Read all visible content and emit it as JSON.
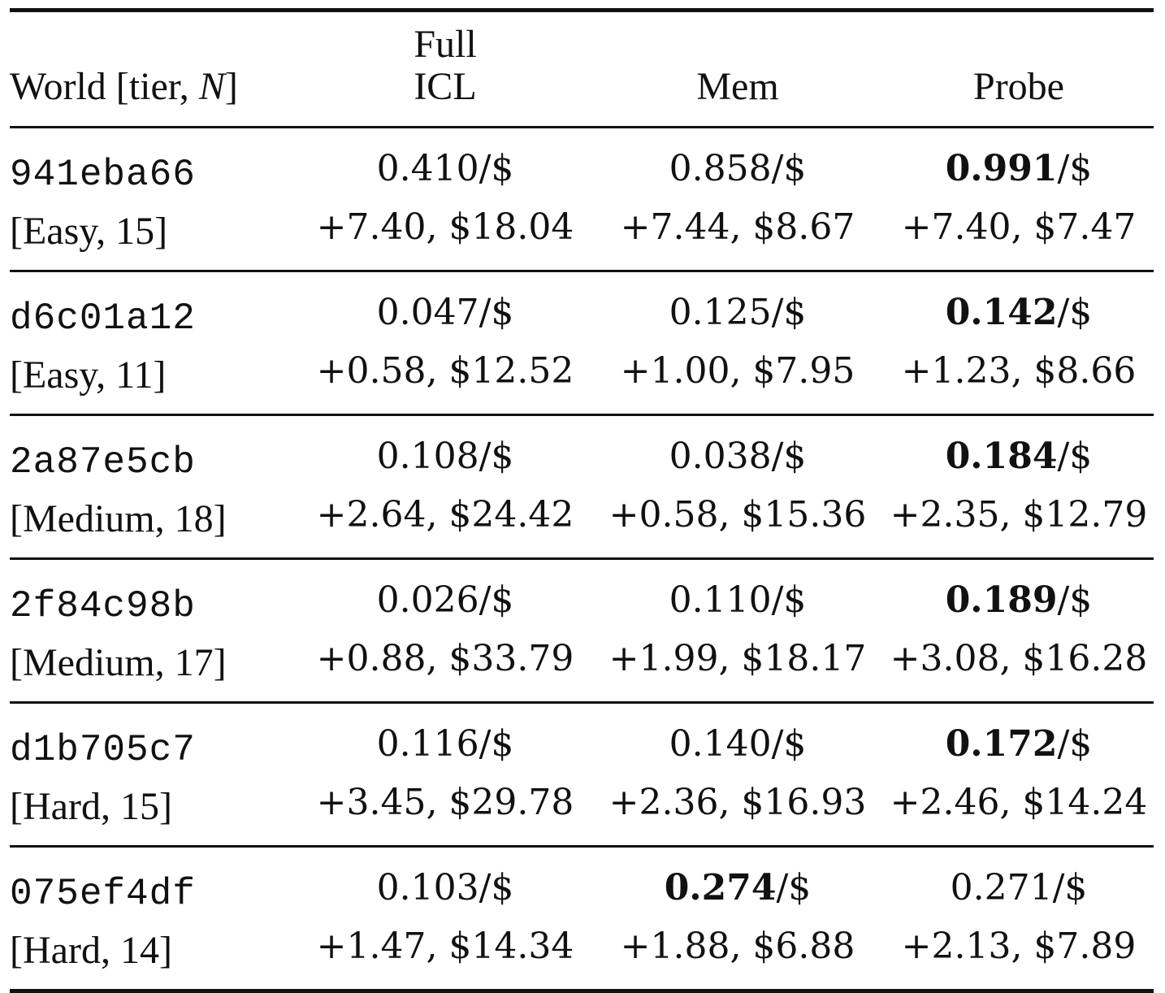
{
  "table": {
    "headers": {
      "world": "World [tier, ",
      "world_n": "N",
      "world_close": "]",
      "full_line1": "Full",
      "full_line2": "ICL",
      "mem": "Mem",
      "probe": "Probe"
    },
    "rows": [
      {
        "world_id": "941eba66",
        "tier": "[Easy, 15]",
        "full_icl": {
          "score": "0.410",
          "unit": "/$",
          "detail": "+7.40,  $18.04"
        },
        "mem": {
          "score": "0.858",
          "unit": "/$",
          "detail": "+7.44,  $8.67"
        },
        "probe": {
          "score": "0.991",
          "unit": "/$",
          "detail": "+7.40,  $7.47"
        },
        "best": "probe"
      },
      {
        "world_id": "d6c01a12",
        "tier": "[Easy, 11]",
        "full_icl": {
          "score": "0.047",
          "unit": "/$",
          "detail": "+0.58,  $12.52"
        },
        "mem": {
          "score": "0.125",
          "unit": "/$",
          "detail": "+1.00,  $7.95"
        },
        "probe": {
          "score": "0.142",
          "unit": "/$",
          "detail": "+1.23,  $8.66"
        },
        "best": "probe"
      },
      {
        "world_id": "2a87e5cb",
        "tier": "[Medium, 18]",
        "full_icl": {
          "score": "0.108",
          "unit": "/$",
          "detail": "+2.64,  $24.42"
        },
        "mem": {
          "score": "0.038",
          "unit": "/$",
          "detail": "+0.58,  $15.36"
        },
        "probe": {
          "score": "0.184",
          "unit": "/$",
          "detail": "+2.35,  $12.79"
        },
        "best": "probe"
      },
      {
        "world_id": "2f84c98b",
        "tier": "[Medium, 17]",
        "full_icl": {
          "score": "0.026",
          "unit": "/$",
          "detail": "+0.88,  $33.79"
        },
        "mem": {
          "score": "0.110",
          "unit": "/$",
          "detail": "+1.99,  $18.17"
        },
        "probe": {
          "score": "0.189",
          "unit": "/$",
          "detail": "+3.08,  $16.28"
        },
        "best": "probe"
      },
      {
        "world_id": "d1b705c7",
        "tier": "[Hard, 15]",
        "full_icl": {
          "score": "0.116",
          "unit": "/$",
          "detail": "+3.45,  $29.78"
        },
        "mem": {
          "score": "0.140",
          "unit": "/$",
          "detail": "+2.36,  $16.93"
        },
        "probe": {
          "score": "0.172",
          "unit": "/$",
          "detail": "+2.46,  $14.24"
        },
        "best": "probe"
      },
      {
        "world_id": "075ef4df",
        "tier": "[Hard, 14]",
        "full_icl": {
          "score": "0.103",
          "unit": "/$",
          "detail": "+1.47,  $14.34"
        },
        "mem": {
          "score": "0.274",
          "unit": "/$",
          "detail": "+1.88,  $6.88"
        },
        "probe": {
          "score": "0.271",
          "unit": "/$",
          "detail": "+2.13,  $7.89"
        },
        "best": "mem"
      }
    ]
  }
}
